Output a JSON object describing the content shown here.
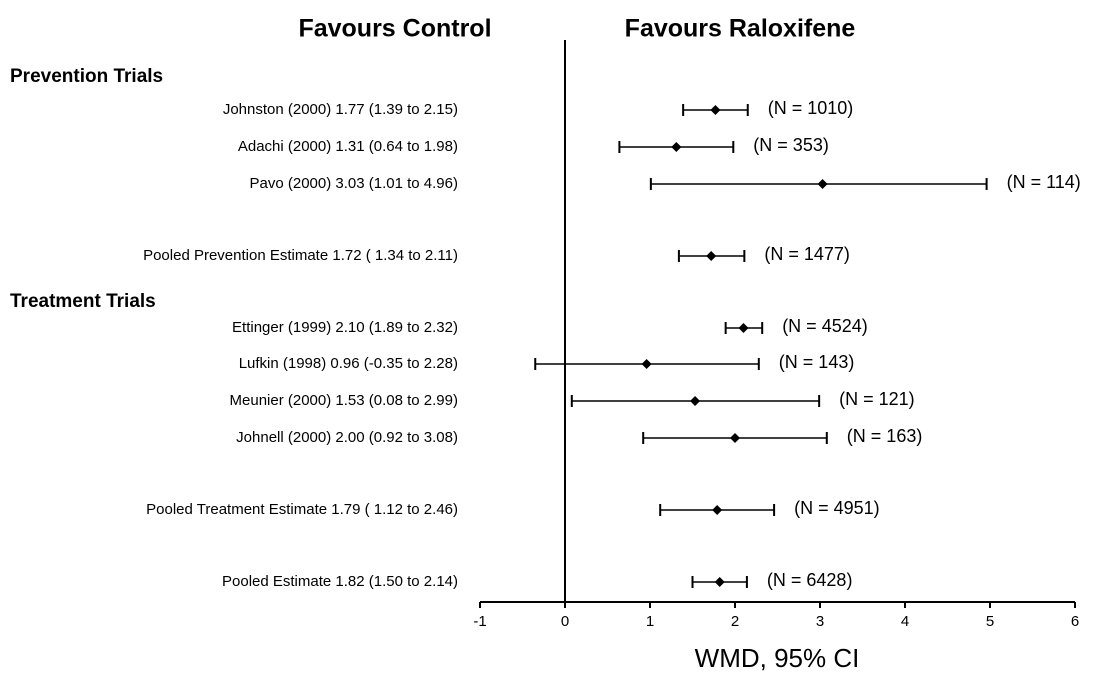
{
  "chart_data": {
    "type": "forest",
    "left_title": "Favours Control",
    "right_title": "Favours Raloxifene",
    "x_label": "WMD, 95% CI",
    "xlim": [
      -1,
      6
    ],
    "xticks": [
      -1,
      0,
      1,
      2,
      3,
      4,
      5,
      6
    ],
    "reference_line": 0,
    "color": "#000000",
    "sections": [
      {
        "title": "Prevention Trials",
        "rows": [
          {
            "label": "Johnston (2000) 1.77 (1.39 to 2.15)",
            "estimate": 1.77,
            "lower": 1.39,
            "upper": 2.15,
            "n_label": "(N = 1010)"
          },
          {
            "label": "Adachi (2000) 1.31 (0.64 to 1.98)",
            "estimate": 1.31,
            "lower": 0.64,
            "upper": 1.98,
            "n_label": "(N = 353)"
          },
          {
            "label": "Pavo (2000) 3.03 (1.01 to 4.96)",
            "estimate": 3.03,
            "lower": 1.01,
            "upper": 4.96,
            "n_label": "(N = 114)"
          },
          {
            "label": "Pooled Prevention  Estimate 1.72 ( 1.34 to 2.11)",
            "estimate": 1.72,
            "lower": 1.34,
            "upper": 2.11,
            "n_label": "(N = 1477)"
          }
        ]
      },
      {
        "title": "Treatment Trials",
        "rows": [
          {
            "label": "Ettinger (1999) 2.10 (1.89 to 2.32)",
            "estimate": 2.1,
            "lower": 1.89,
            "upper": 2.32,
            "n_label": "(N = 4524)"
          },
          {
            "label": "Lufkin (1998) 0.96 (-0.35 to 2.28)",
            "estimate": 0.96,
            "lower": -0.35,
            "upper": 2.28,
            "n_label": "(N = 143)"
          },
          {
            "label": "Meunier (2000) 1.53 (0.08 to 2.99)",
            "estimate": 1.53,
            "lower": 0.08,
            "upper": 2.99,
            "n_label": "(N = 121)"
          },
          {
            "label": "Johnell (2000) 2.00 (0.92 to 3.08)",
            "estimate": 2.0,
            "lower": 0.92,
            "upper": 3.08,
            "n_label": "(N = 163)"
          },
          {
            "label": "Pooled Treatment  Estimate  1.79 ( 1.12 to 2.46)",
            "estimate": 1.79,
            "lower": 1.12,
            "upper": 2.46,
            "n_label": "(N = 4951)"
          }
        ]
      }
    ],
    "overall": {
      "label": "Pooled Estimate 1.82 (1.50 to 2.14)",
      "estimate": 1.82,
      "lower": 1.5,
      "upper": 2.14,
      "n_label": "(N = 6428)"
    }
  }
}
